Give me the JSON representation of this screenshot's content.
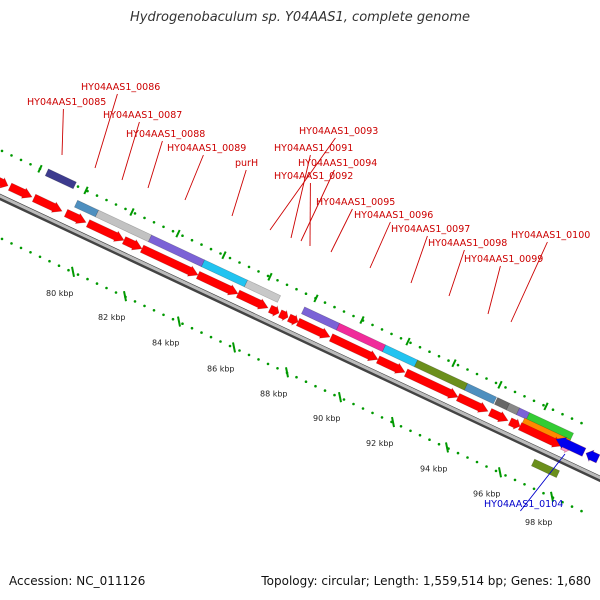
{
  "title": "Hydrogenobaculum sp. Y04AAS1, complete genome",
  "footer": {
    "accession": "Accession: NC_011126",
    "summary": "Topology: circular; Length: 1,559,514 bp; Genes: 1,680"
  },
  "colors": {
    "cds_forward": "#ff0000",
    "cds_reverse": "#0000ee",
    "label_red": "#cc0000",
    "label_blue": "#0000cc",
    "tick": "#009900",
    "backbone": "#888888"
  },
  "scale_labels": [
    "80 kbp",
    "82 kbp",
    "84 kbp",
    "86 kbp",
    "88 kbp",
    "90 kbp",
    "92 kbp",
    "94 kbp",
    "96 kbp",
    "98 kbp"
  ],
  "gene_labels": [
    {
      "text": "HY04AAS1_0085",
      "color": "red"
    },
    {
      "text": "HY04AAS1_0086",
      "color": "red"
    },
    {
      "text": "HY04AAS1_0087",
      "color": "red"
    },
    {
      "text": "HY04AAS1_0088",
      "color": "red"
    },
    {
      "text": "HY04AAS1_0089",
      "color": "red"
    },
    {
      "text": "purH",
      "color": "red"
    },
    {
      "text": "HY04AAS1_0093",
      "color": "red"
    },
    {
      "text": "HY04AAS1_0091",
      "color": "red"
    },
    {
      "text": "HY04AAS1_0094",
      "color": "red"
    },
    {
      "text": "HY04AAS1_0092",
      "color": "red"
    },
    {
      "text": "HY04AAS1_0095",
      "color": "red"
    },
    {
      "text": "HY04AAS1_0096",
      "color": "red"
    },
    {
      "text": "HY04AAS1_0097",
      "color": "red"
    },
    {
      "text": "HY04AAS1_0098",
      "color": "red"
    },
    {
      "text": "HY04AAS1_0100",
      "color": "red"
    },
    {
      "text": "HY04AAS1_0099",
      "color": "red"
    },
    {
      "text": "HY04AAS1_0104",
      "color": "blue"
    }
  ]
}
